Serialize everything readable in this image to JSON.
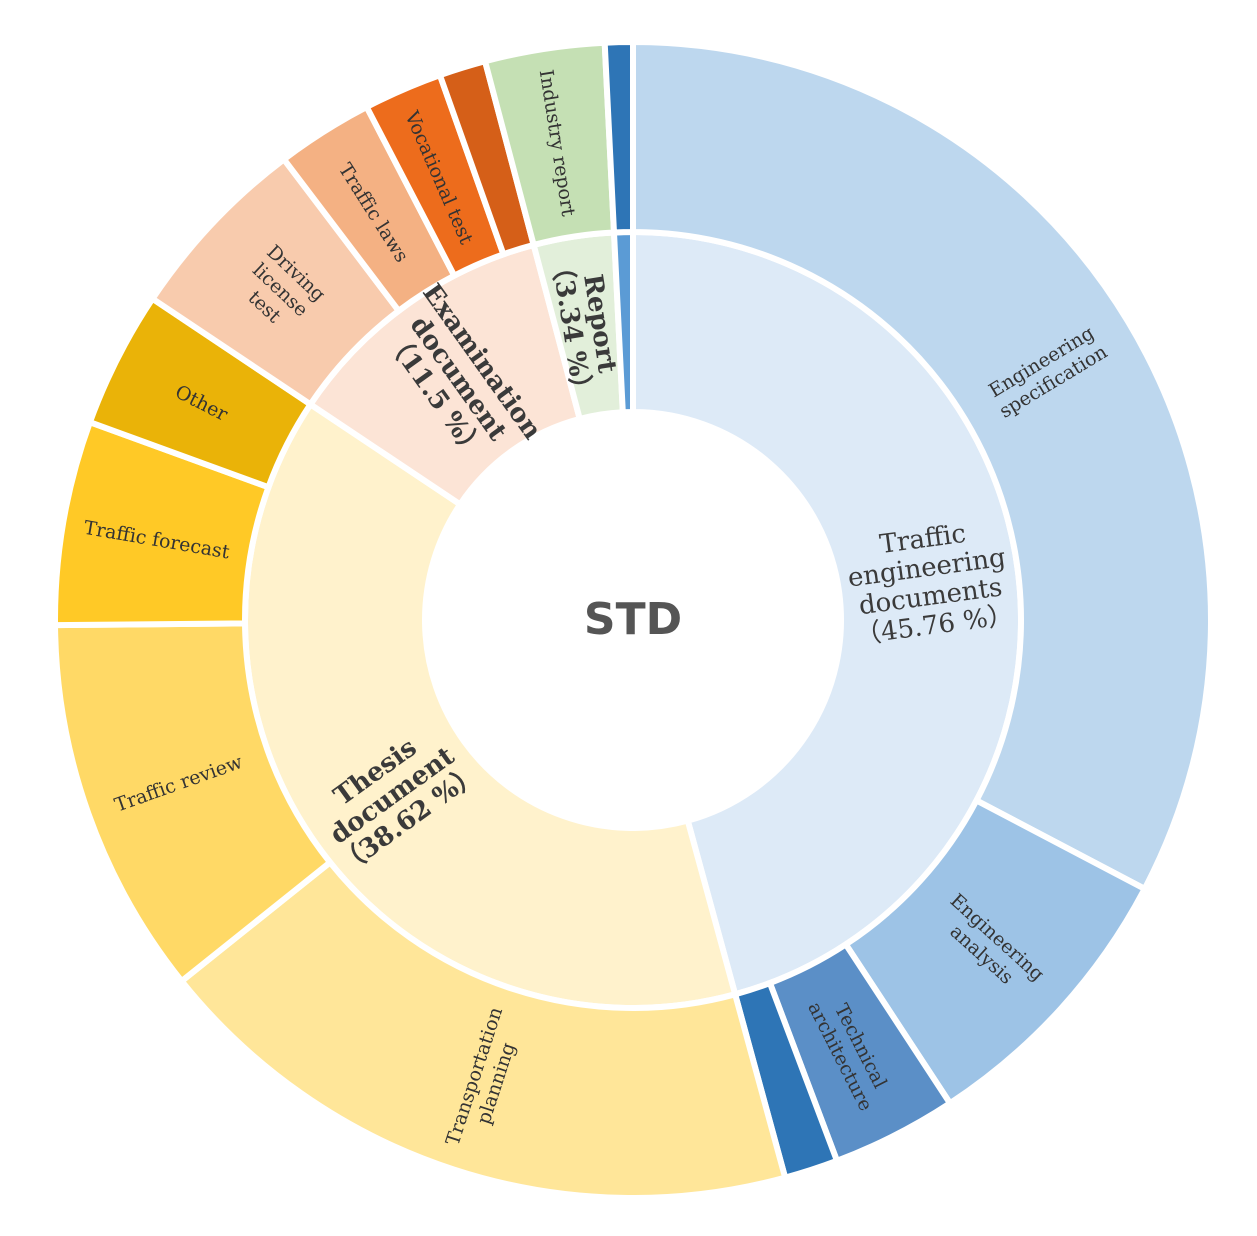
{
  "chart_data": {
    "type": "sunburst",
    "center_label": "STD",
    "inner": [
      {
        "key": "traffic",
        "lines": [
          "Traffic",
          "engineering",
          "documents",
          "（45.76 %）"
        ],
        "value": 45.76,
        "color": "#DDEAF7",
        "bold": false
      },
      {
        "key": "thesis",
        "lines": [
          "Thesis",
          "document",
          "（38.62 %）"
        ],
        "value": 38.62,
        "color": "#FFF2CC",
        "bold": true
      },
      {
        "key": "exam",
        "lines": [
          "Examination",
          "document",
          "（11.5 %）"
        ],
        "value": 11.5,
        "color": "#FCE4D6",
        "bold": true
      },
      {
        "key": "report",
        "lines": [
          "Report",
          "（3.34 %）"
        ],
        "value": 3.34,
        "color": "#E2EFDA",
        "bold": true
      },
      {
        "key": "blue-small",
        "lines": [],
        "value": 0.78,
        "color": "#5B9BD5",
        "bold": false
      }
    ],
    "outer": [
      {
        "parent": "traffic",
        "lines": [
          "Engineering",
          "specification"
        ],
        "value": 32.7,
        "color": "#BDD7EE"
      },
      {
        "parent": "traffic",
        "lines": [
          "Engineering",
          "analysis"
        ],
        "value": 8.06,
        "color": "#9DC3E6"
      },
      {
        "parent": "traffic",
        "lines": [
          "Technical",
          "architecture"
        ],
        "value": 3.5,
        "color": "#5B8FC7"
      },
      {
        "parent": "traffic",
        "lines": [],
        "value": 1.5,
        "color": "#2E75B6"
      },
      {
        "parent": "thesis",
        "lines": [
          "Transportation",
          "planning"
        ],
        "value": 18.5,
        "color": "#FFE699"
      },
      {
        "parent": "thesis",
        "lines": [
          "Traffic review"
        ],
        "value": 10.6,
        "color": "#FFD966"
      },
      {
        "parent": "thesis",
        "lines": [
          "Traffic forecast"
        ],
        "value": 5.7,
        "color": "#FFC926"
      },
      {
        "parent": "thesis",
        "lines": [
          "Other"
        ],
        "value": 3.82,
        "color": "#EAB308"
      },
      {
        "parent": "exam",
        "lines": [
          "Driving",
          "license",
          "test"
        ],
        "value": 5.3,
        "color": "#F8CBAD"
      },
      {
        "parent": "exam",
        "lines": [
          "Traffic laws"
        ],
        "value": 2.7,
        "color": "#F4B183"
      },
      {
        "parent": "exam",
        "lines": [
          "Vocational test"
        ],
        "value": 2.2,
        "color": "#ED6C1C"
      },
      {
        "parent": "exam",
        "lines": [],
        "value": 1.3,
        "color": "#D55F18"
      },
      {
        "parent": "report",
        "lines": [
          "Industry report"
        ],
        "value": 3.34,
        "color": "#C5E0B4"
      },
      {
        "parent": "blue-small",
        "lines": [],
        "value": 0.78,
        "color": "#2E75B6"
      }
    ]
  }
}
